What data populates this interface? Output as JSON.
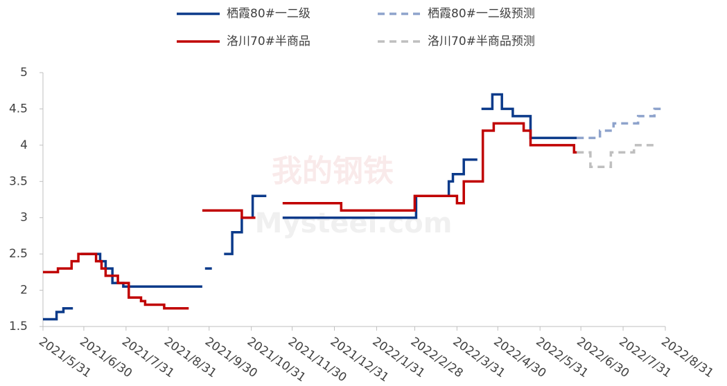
{
  "chart_data": {
    "type": "line",
    "watermark": {
      "logo": "我的钢铁",
      "text": "Mysteel.com"
    },
    "xlim": [
      "2021-05-31",
      "2022-08-31"
    ],
    "xticks": [
      {
        "value": "2021-05-31",
        "label": "2021/5/31"
      },
      {
        "value": "2021-06-30",
        "label": "2021/6/30"
      },
      {
        "value": "2021-07-31",
        "label": "2021/7/31"
      },
      {
        "value": "2021-08-31",
        "label": "2021/8/31"
      },
      {
        "value": "2021-09-30",
        "label": "2021/9/30"
      },
      {
        "value": "2021-10-31",
        "label": "2021/10/31"
      },
      {
        "value": "2021-11-30",
        "label": "2021/11/30"
      },
      {
        "value": "2021-12-31",
        "label": "2021/12/31"
      },
      {
        "value": "2022-01-31",
        "label": "2022/1/31"
      },
      {
        "value": "2022-02-28",
        "label": "2022/2/28"
      },
      {
        "value": "2022-03-31",
        "label": "2022/3/31"
      },
      {
        "value": "2022-04-30",
        "label": "2022/4/30"
      },
      {
        "value": "2022-05-31",
        "label": "2022/5/31"
      },
      {
        "value": "2022-06-30",
        "label": "2022/6/30"
      },
      {
        "value": "2022-07-31",
        "label": "2022/7/31"
      },
      {
        "value": "2022-08-31",
        "label": "2022/8/31"
      }
    ],
    "ylim": [
      1.5,
      5
    ],
    "yticks": [
      1.5,
      2,
      2.5,
      3,
      3.5,
      4,
      4.5,
      5
    ],
    "grid": false,
    "legend": "top",
    "series": [
      {
        "name": "栖霞80#一二级",
        "color": "#0b3a8a",
        "dash": false,
        "x": [
          "2021-05-31",
          "2021-06-10",
          "2021-06-10",
          "2021-06-15",
          "2021-06-15",
          "2021-06-22",
          "2021-06-25",
          "2021-06-28",
          "2021-07-12",
          "2021-07-12",
          "2021-07-16",
          "2021-07-16",
          "2021-07-21",
          "2021-07-21",
          "2021-07-29",
          "2021-07-29",
          "2021-09-25",
          "2021-09-26",
          "2021-09-27",
          "2021-10-02",
          "2021-10-07",
          "2021-10-11",
          "2021-10-17",
          "2021-10-17",
          "2021-10-24",
          "2021-10-24",
          "2021-11-01",
          "2021-11-01",
          "2021-11-11",
          "2021-11-16",
          "2021-11-23",
          "2022-03-01",
          "2022-03-01",
          "2022-03-25",
          "2022-03-25",
          "2022-03-28",
          "2022-03-28",
          "2022-04-05",
          "2022-04-05",
          "2022-04-15",
          "2022-04-16",
          "2022-04-18",
          "2022-04-26",
          "2022-04-26",
          "2022-05-03",
          "2022-05-03",
          "2022-05-11",
          "2022-05-11",
          "2022-05-24",
          "2022-05-24",
          "2022-06-27"
        ],
        "values": [
          1.6,
          1.6,
          1.7,
          1.7,
          1.75,
          1.75,
          null,
          2.5,
          2.5,
          2.4,
          2.4,
          2.3,
          2.3,
          2.1,
          2.1,
          2.05,
          2.05,
          null,
          2.3,
          2.3,
          null,
          2.5,
          2.5,
          2.8,
          2.8,
          3.0,
          3.0,
          3.3,
          3.3,
          null,
          3.0,
          3.0,
          3.3,
          3.3,
          3.5,
          3.5,
          3.6,
          3.6,
          3.8,
          3.8,
          null,
          4.5,
          4.5,
          4.7,
          4.7,
          4.5,
          4.5,
          4.4,
          4.4,
          4.1,
          4.1
        ]
      },
      {
        "name": "栖霞80#一二级预测",
        "color": "#8ea3cc",
        "dash": true,
        "x": [
          "2022-06-27",
          "2022-07-14",
          "2022-07-14",
          "2022-07-24",
          "2022-07-24",
          "2022-08-11",
          "2022-08-11",
          "2022-08-23",
          "2022-08-23",
          "2022-08-31"
        ],
        "values": [
          4.1,
          4.1,
          4.2,
          4.2,
          4.3,
          4.3,
          4.4,
          4.4,
          4.5,
          4.5
        ]
      },
      {
        "name": "洛川70#半商品",
        "color": "#c00000",
        "dash": false,
        "x": [
          "2021-05-31",
          "2021-06-11",
          "2021-06-11",
          "2021-06-21",
          "2021-06-21",
          "2021-06-26",
          "2021-06-26",
          "2021-07-09",
          "2021-07-09",
          "2021-07-13",
          "2021-07-13",
          "2021-07-16",
          "2021-07-16",
          "2021-07-25",
          "2021-07-25",
          "2021-08-02",
          "2021-08-02",
          "2021-08-11",
          "2021-08-11",
          "2021-08-14",
          "2021-08-14",
          "2021-08-28",
          "2021-08-28",
          "2021-09-15",
          "2021-09-20",
          "2021-09-25",
          "2021-10-24",
          "2021-10-24",
          "2021-11-03",
          "2021-11-12",
          "2021-11-23",
          "2022-01-05",
          "2022-01-05",
          "2022-02-28",
          "2022-02-28",
          "2022-03-31",
          "2022-03-31",
          "2022-04-05",
          "2022-04-05",
          "2022-04-19",
          "2022-04-19",
          "2022-04-27",
          "2022-04-27",
          "2022-05-19",
          "2022-05-19",
          "2022-05-24",
          "2022-05-24",
          "2022-06-25",
          "2022-06-25",
          "2022-06-27"
        ],
        "values": [
          2.25,
          2.25,
          2.3,
          2.3,
          2.4,
          2.4,
          2.5,
          2.5,
          2.4,
          2.4,
          2.3,
          2.3,
          2.2,
          2.2,
          2.1,
          2.1,
          1.9,
          1.9,
          1.85,
          1.85,
          1.8,
          1.8,
          1.75,
          1.75,
          null,
          3.1,
          3.1,
          3.0,
          3.0,
          null,
          3.2,
          3.2,
          3.1,
          3.1,
          3.3,
          3.3,
          3.2,
          3.2,
          3.5,
          3.5,
          4.2,
          4.2,
          4.3,
          4.3,
          4.2,
          4.2,
          4.0,
          4.0,
          3.9,
          3.9
        ]
      },
      {
        "name": "洛川70#半商品预测",
        "color": "#bfbfbf",
        "dash": true,
        "x": [
          "2022-06-27",
          "2022-07-07",
          "2022-07-07",
          "2022-07-22",
          "2022-07-22",
          "2022-08-08",
          "2022-08-08",
          "2022-08-23"
        ],
        "values": [
          3.9,
          3.9,
          3.7,
          3.7,
          3.9,
          3.9,
          4.0,
          4.0
        ]
      }
    ]
  }
}
